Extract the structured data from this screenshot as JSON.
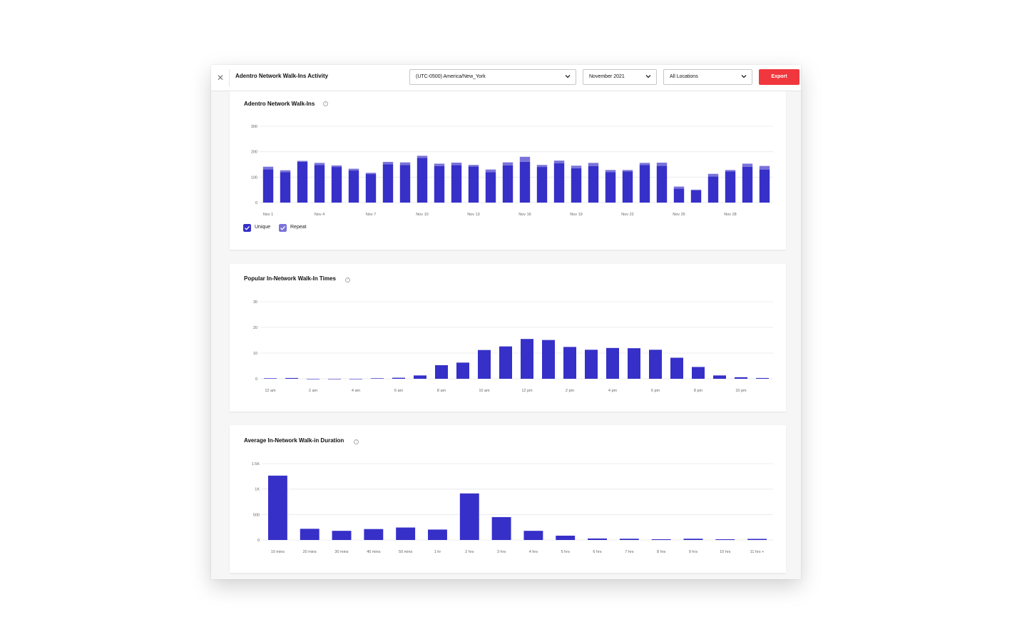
{
  "window": {
    "title": "Adentro Network Walk-Ins Activity",
    "close_icon": "close-icon"
  },
  "filters": {
    "timezone": "(UTC-0500) America/New_York",
    "month": "November 2021",
    "location": "All Locations",
    "export_label": "Export",
    "export_color": "#f0373d"
  },
  "colors": {
    "unique": "#3630c8",
    "repeat": "#7a73db",
    "grid": "#ececef",
    "tick_text": "#666666"
  },
  "cards": {
    "walkins": {
      "title": "Adentro Network Walk-Ins",
      "help_icon": "help-circle-icon",
      "legend": {
        "unique": "Unique",
        "repeat": "Repeat"
      }
    },
    "times": {
      "title": "Popular In-Network Walk-In Times",
      "help_icon": "help-circle-icon"
    },
    "duration": {
      "title": "Average In-Network Walk-in Duration",
      "help_icon": "help-circle-icon"
    }
  },
  "chart_data": [
    {
      "type": "bar",
      "stacked": true,
      "ylim": [
        0,
        300
      ],
      "y_ticks": [
        "0",
        "100",
        "200",
        "300"
      ],
      "y_tick_values": [
        0,
        100,
        200,
        300
      ],
      "x_tick_labels": [
        "Nov 1",
        "Nov 4",
        "Nov 7",
        "Nov 10",
        "Nov 13",
        "Nov 16",
        "Nov 19",
        "Nov 22",
        "Nov 25",
        "Nov 28"
      ],
      "x_tick_every": 3,
      "categories": [
        "Nov 1",
        "Nov 2",
        "Nov 3",
        "Nov 4",
        "Nov 5",
        "Nov 6",
        "Nov 7",
        "Nov 8",
        "Nov 9",
        "Nov 10",
        "Nov 11",
        "Nov 12",
        "Nov 13",
        "Nov 14",
        "Nov 15",
        "Nov 16",
        "Nov 17",
        "Nov 18",
        "Nov 19",
        "Nov 20",
        "Nov 21",
        "Nov 22",
        "Nov 23",
        "Nov 24",
        "Nov 25",
        "Nov 26",
        "Nov 27",
        "Nov 28",
        "Nov 29",
        "Nov 30"
      ],
      "series": [
        {
          "name": "Unique",
          "values": [
            131,
            120,
            160,
            148,
            140,
            126,
            112,
            150,
            148,
            176,
            143,
            147,
            142,
            120,
            146,
            160,
            140,
            155,
            135,
            143,
            120,
            122,
            148,
            145,
            55,
            48,
            103,
            122,
            141,
            130
          ]
        },
        {
          "name": "Repeat",
          "values": [
            10,
            7,
            4,
            8,
            6,
            7,
            5,
            10,
            10,
            8,
            10,
            10,
            6,
            10,
            12,
            20,
            8,
            10,
            10,
            13,
            8,
            6,
            8,
            12,
            8,
            3,
            10,
            6,
            12,
            14
          ]
        }
      ],
      "grid": true,
      "legend_position": "bottom-left"
    },
    {
      "type": "bar",
      "ylim": [
        0,
        30
      ],
      "y_ticks": [
        "0",
        "10",
        "20",
        "30"
      ],
      "y_tick_values": [
        0,
        10,
        20,
        30
      ],
      "x_tick_labels": [
        "12 am",
        "2 am",
        "4 am",
        "6 am",
        "8 am",
        "10 am",
        "12 pm",
        "2 pm",
        "4 pm",
        "6 pm",
        "8 pm",
        "10 pm"
      ],
      "x_tick_every": 2,
      "values": [
        0.2,
        0.3,
        0,
        0,
        0,
        0.2,
        0.4,
        1.3,
        5.3,
        6.3,
        11.2,
        12.6,
        15.5,
        15.1,
        12.4,
        11.3,
        12,
        11.9,
        11.3,
        8.2,
        4.6,
        1.3,
        0.6,
        0.3
      ],
      "grid": true
    },
    {
      "type": "bar",
      "ylim": [
        0,
        1500
      ],
      "y_ticks": [
        "0",
        "500",
        "1K",
        "1.5K"
      ],
      "y_tick_values": [
        0,
        500,
        1000,
        1500
      ],
      "categories": [
        "10 mins",
        "20 mins",
        "30 mins",
        "40 mins",
        "50 mins",
        "1 hr",
        "2 hrs",
        "3 hrs",
        "4 hrs",
        "5 hrs",
        "6 hrs",
        "7 hrs",
        "8 hrs",
        "9 hrs",
        "10 hrs",
        "11 hrs +"
      ],
      "values": [
        1265,
        220,
        180,
        215,
        245,
        205,
        915,
        450,
        180,
        85,
        30,
        25,
        15,
        25,
        15,
        22
      ],
      "grid": true
    }
  ]
}
